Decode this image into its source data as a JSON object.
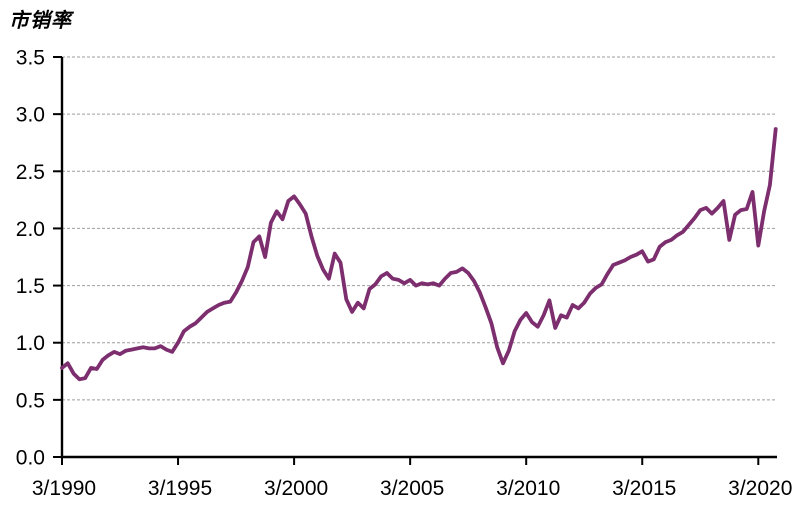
{
  "chart_data": {
    "type": "line",
    "title": "市销率",
    "series_name": "市销率",
    "frequency": "quarterly",
    "legend": "none",
    "grid": "horizontal-dashed",
    "xlabel": "",
    "ylabel": "",
    "ylim": [
      0.0,
      3.5
    ],
    "y_tick_labels": [
      "0.0",
      "0.5",
      "1.0",
      "1.5",
      "2.0",
      "2.5",
      "3.0",
      "3.5"
    ],
    "x_tick_labels": [
      "3/1990",
      "3/1995",
      "3/2000",
      "3/2005",
      "3/2010",
      "3/2015",
      "3/2020"
    ],
    "x_tick_point_indices": [
      0,
      20,
      40,
      60,
      80,
      100,
      120
    ],
    "points": [
      [
        "3/1990",
        0.78
      ],
      [
        "6/1990",
        0.82
      ],
      [
        "9/1990",
        0.73
      ],
      [
        "12/1990",
        0.68
      ],
      [
        "3/1991",
        0.69
      ],
      [
        "6/1991",
        0.78
      ],
      [
        "9/1991",
        0.77
      ],
      [
        "12/1991",
        0.85
      ],
      [
        "3/1992",
        0.89
      ],
      [
        "6/1992",
        0.92
      ],
      [
        "9/1992",
        0.9
      ],
      [
        "12/1992",
        0.93
      ],
      [
        "3/1993",
        0.94
      ],
      [
        "6/1993",
        0.95
      ],
      [
        "9/1993",
        0.96
      ],
      [
        "12/1993",
        0.95
      ],
      [
        "3/1994",
        0.95
      ],
      [
        "6/1994",
        0.97
      ],
      [
        "9/1994",
        0.94
      ],
      [
        "12/1994",
        0.92
      ],
      [
        "3/1995",
        1.0
      ],
      [
        "6/1995",
        1.1
      ],
      [
        "9/1995",
        1.14
      ],
      [
        "12/1995",
        1.17
      ],
      [
        "3/1996",
        1.22
      ],
      [
        "6/1996",
        1.27
      ],
      [
        "9/1996",
        1.3
      ],
      [
        "12/1996",
        1.33
      ],
      [
        "3/1997",
        1.35
      ],
      [
        "6/1997",
        1.36
      ],
      [
        "9/1997",
        1.44
      ],
      [
        "12/1997",
        1.54
      ],
      [
        "3/1998",
        1.66
      ],
      [
        "6/1998",
        1.88
      ],
      [
        "9/1998",
        1.93
      ],
      [
        "12/1998",
        1.75
      ],
      [
        "3/1999",
        2.05
      ],
      [
        "6/1999",
        2.15
      ],
      [
        "9/1999",
        2.08
      ],
      [
        "12/1999",
        2.24
      ],
      [
        "3/2000",
        2.28
      ],
      [
        "6/2000",
        2.21
      ],
      [
        "9/2000",
        2.13
      ],
      [
        "12/2000",
        1.93
      ],
      [
        "3/2001",
        1.76
      ],
      [
        "6/2001",
        1.64
      ],
      [
        "9/2001",
        1.56
      ],
      [
        "12/2001",
        1.78
      ],
      [
        "3/2002",
        1.7
      ],
      [
        "6/2002",
        1.38
      ],
      [
        "9/2002",
        1.27
      ],
      [
        "12/2002",
        1.35
      ],
      [
        "3/2003",
        1.3
      ],
      [
        "6/2003",
        1.47
      ],
      [
        "9/2003",
        1.51
      ],
      [
        "12/2003",
        1.58
      ],
      [
        "3/2004",
        1.61
      ],
      [
        "6/2004",
        1.56
      ],
      [
        "9/2004",
        1.55
      ],
      [
        "12/2004",
        1.52
      ],
      [
        "3/2005",
        1.55
      ],
      [
        "6/2005",
        1.5
      ],
      [
        "9/2005",
        1.52
      ],
      [
        "12/2005",
        1.51
      ],
      [
        "3/2006",
        1.52
      ],
      [
        "6/2006",
        1.5
      ],
      [
        "9/2006",
        1.56
      ],
      [
        "12/2006",
        1.61
      ],
      [
        "3/2007",
        1.62
      ],
      [
        "6/2007",
        1.65
      ],
      [
        "9/2007",
        1.61
      ],
      [
        "12/2007",
        1.54
      ],
      [
        "3/2008",
        1.44
      ],
      [
        "6/2008",
        1.31
      ],
      [
        "9/2008",
        1.17
      ],
      [
        "12/2008",
        0.96
      ],
      [
        "3/2009",
        0.82
      ],
      [
        "6/2009",
        0.93
      ],
      [
        "9/2009",
        1.1
      ],
      [
        "12/2009",
        1.2
      ],
      [
        "3/2010",
        1.26
      ],
      [
        "6/2010",
        1.18
      ],
      [
        "9/2010",
        1.14
      ],
      [
        "12/2010",
        1.24
      ],
      [
        "3/2011",
        1.37
      ],
      [
        "6/2011",
        1.13
      ],
      [
        "9/2011",
        1.24
      ],
      [
        "12/2011",
        1.22
      ],
      [
        "3/2012",
        1.33
      ],
      [
        "6/2012",
        1.3
      ],
      [
        "9/2012",
        1.35
      ],
      [
        "12/2012",
        1.43
      ],
      [
        "3/2013",
        1.48
      ],
      [
        "6/2013",
        1.51
      ],
      [
        "9/2013",
        1.6
      ],
      [
        "12/2013",
        1.68
      ],
      [
        "3/2014",
        1.7
      ],
      [
        "6/2014",
        1.72
      ],
      [
        "9/2014",
        1.75
      ],
      [
        "12/2014",
        1.77
      ],
      [
        "3/2015",
        1.8
      ],
      [
        "6/2015",
        1.71
      ],
      [
        "9/2015",
        1.73
      ],
      [
        "12/2015",
        1.84
      ],
      [
        "3/2016",
        1.88
      ],
      [
        "6/2016",
        1.9
      ],
      [
        "9/2016",
        1.94
      ],
      [
        "12/2016",
        1.97
      ],
      [
        "3/2017",
        2.03
      ],
      [
        "6/2017",
        2.09
      ],
      [
        "9/2017",
        2.16
      ],
      [
        "12/2017",
        2.18
      ],
      [
        "3/2018",
        2.13
      ],
      [
        "6/2018",
        2.18
      ],
      [
        "9/2018",
        2.24
      ],
      [
        "12/2018",
        1.9
      ],
      [
        "3/2019",
        2.12
      ],
      [
        "6/2019",
        2.16
      ],
      [
        "9/2019",
        2.17
      ],
      [
        "12/2019",
        2.32
      ],
      [
        "3/2020",
        1.85
      ],
      [
        "6/2020",
        2.15
      ],
      [
        "9/2020",
        2.38
      ],
      [
        "12/2020",
        2.87
      ]
    ],
    "colors": {
      "line": "#7c2e6e",
      "axis": "#000000",
      "grid": "#9e9e9e",
      "text": "#000000",
      "background": "#ffffff"
    }
  }
}
